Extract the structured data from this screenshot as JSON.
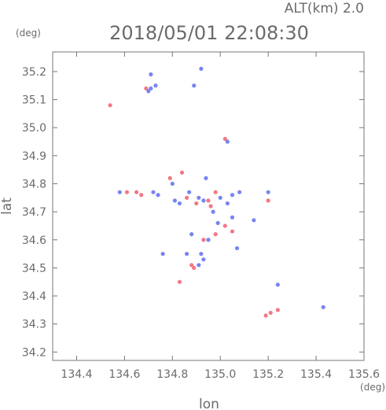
{
  "header": {
    "alt_label": "ALT(km)  2.0",
    "datetime": "2018/05/01  22:08:30"
  },
  "colors": {
    "text": "#6b6b6b",
    "frame": "#777777",
    "red_echo": "#f06070",
    "blue_echo": "#6070f0"
  },
  "chart_data": {
    "type": "scatter",
    "title": "2018/05/01  22:08:30",
    "subtitle": "ALT(km)  2.0",
    "xlabel": "lon",
    "ylabel": "lat",
    "x_unit": "(deg)",
    "y_unit": "(deg)",
    "xlim": [
      134.3,
      135.6
    ],
    "ylim": [
      34.17,
      35.27
    ],
    "xticks": [
      "134.4",
      "134.6",
      "134.8",
      "135.0",
      "135.2",
      "135.4",
      "135.6"
    ],
    "yticks": [
      "34.2",
      "34.3",
      "34.4",
      "34.5",
      "34.6",
      "34.7",
      "34.8",
      "34.9",
      "35.0",
      "35.1",
      "35.2"
    ],
    "grid": false,
    "series": [
      {
        "color": "red",
        "points": [
          [
            134.54,
            35.08
          ],
          [
            134.69,
            35.14
          ],
          [
            134.61,
            34.77
          ],
          [
            134.65,
            34.77
          ],
          [
            134.67,
            34.76
          ],
          [
            134.79,
            34.82
          ],
          [
            134.84,
            34.84
          ],
          [
            134.86,
            34.75
          ],
          [
            134.9,
            34.73
          ],
          [
            134.95,
            34.74
          ],
          [
            134.98,
            34.77
          ],
          [
            134.96,
            34.72
          ],
          [
            135.02,
            34.96
          ],
          [
            135.02,
            34.65
          ],
          [
            135.05,
            34.63
          ],
          [
            135.2,
            34.74
          ],
          [
            134.88,
            34.51
          ],
          [
            134.89,
            34.5
          ],
          [
            134.83,
            34.45
          ],
          [
            135.19,
            34.33
          ],
          [
            135.21,
            34.34
          ],
          [
            135.24,
            34.35
          ],
          [
            134.98,
            34.62
          ],
          [
            134.93,
            34.6
          ]
        ]
      },
      {
        "color": "blue",
        "points": [
          [
            134.71,
            35.19
          ],
          [
            134.71,
            35.14
          ],
          [
            134.73,
            35.15
          ],
          [
            134.7,
            35.13
          ],
          [
            134.92,
            35.21
          ],
          [
            134.89,
            35.15
          ],
          [
            134.58,
            34.77
          ],
          [
            134.72,
            34.77
          ],
          [
            134.74,
            34.76
          ],
          [
            134.8,
            34.8
          ],
          [
            134.81,
            34.74
          ],
          [
            134.83,
            34.73
          ],
          [
            134.87,
            34.77
          ],
          [
            134.91,
            34.75
          ],
          [
            134.93,
            34.74
          ],
          [
            134.97,
            34.7
          ],
          [
            135.0,
            34.75
          ],
          [
            135.03,
            34.73
          ],
          [
            135.05,
            34.76
          ],
          [
            135.08,
            34.77
          ],
          [
            134.94,
            34.82
          ],
          [
            135.03,
            34.95
          ],
          [
            134.99,
            34.66
          ],
          [
            135.05,
            34.68
          ],
          [
            135.07,
            34.57
          ],
          [
            134.95,
            34.6
          ],
          [
            134.92,
            34.55
          ],
          [
            134.93,
            34.53
          ],
          [
            134.91,
            34.51
          ],
          [
            134.86,
            34.55
          ],
          [
            135.14,
            34.67
          ],
          [
            135.2,
            34.77
          ],
          [
            135.24,
            34.44
          ],
          [
            135.43,
            34.36
          ],
          [
            134.76,
            34.55
          ],
          [
            134.88,
            34.62
          ]
        ]
      }
    ]
  }
}
